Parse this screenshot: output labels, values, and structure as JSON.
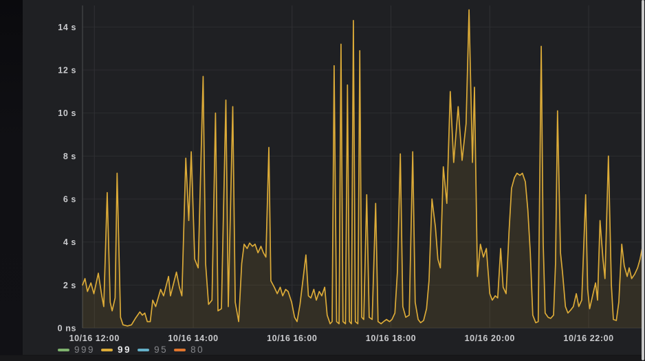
{
  "panel": {
    "background_color": "#1f2023",
    "left_strip_color": "#101014",
    "bottom_band_color": "#18181a",
    "scrollbar_color": "#c9c9c9",
    "grid_color": "#2c2d30",
    "axis_text_color": "#c9cacd"
  },
  "chart_data": {
    "type": "area",
    "title": "",
    "xlabel": "",
    "ylabel": "",
    "grid": true,
    "legend_position": "bottom-left",
    "x_axis": {
      "tick_hours": [
        12,
        14,
        16,
        18,
        20,
        22
      ],
      "tick_labels": [
        "10/16 12:00",
        "10/16 14:00",
        "10/16 16:00",
        "10/16 18:00",
        "10/16 20:00",
        "10/16 22:00"
      ],
      "range_hours": [
        11.76,
        23.14
      ]
    },
    "y_axis": {
      "tick_values": [
        0,
        2,
        4,
        6,
        8,
        10,
        12,
        14
      ],
      "tick_labels": [
        "0 ns",
        "2 s",
        "4 s",
        "6 s",
        "8 s",
        "10 s",
        "12 s",
        "14 s"
      ],
      "range": [
        0,
        15
      ]
    },
    "legend": {
      "items": [
        {
          "label": "999",
          "color": "#7eb26d",
          "emphasized": false
        },
        {
          "label": "99",
          "color": "#dcab38",
          "emphasized": true
        },
        {
          "label": "95",
          "color": "#64b0c8",
          "emphasized": false
        },
        {
          "label": "80",
          "color": "#e0752d",
          "emphasized": false
        }
      ]
    },
    "series": [
      {
        "name": "999",
        "color": "#7eb26d",
        "points": []
      },
      {
        "name": "99",
        "color": "#dcab38",
        "fill_opacity": 0.11,
        "points_format": [
          "hour_of_day_10_16",
          "seconds"
        ],
        "points": [
          [
            11.76,
            2.0
          ],
          [
            11.81,
            2.3
          ],
          [
            11.86,
            1.7
          ],
          [
            11.93,
            2.1
          ],
          [
            11.99,
            1.6
          ],
          [
            12.08,
            2.55
          ],
          [
            12.15,
            1.5
          ],
          [
            12.19,
            1.0
          ],
          [
            12.26,
            6.3
          ],
          [
            12.32,
            1.2
          ],
          [
            12.36,
            0.8
          ],
          [
            12.42,
            1.4
          ],
          [
            12.46,
            7.2
          ],
          [
            12.53,
            0.5
          ],
          [
            12.58,
            0.15
          ],
          [
            12.67,
            0.1
          ],
          [
            12.75,
            0.15
          ],
          [
            12.83,
            0.45
          ],
          [
            12.92,
            0.75
          ],
          [
            12.97,
            0.6
          ],
          [
            13.02,
            0.7
          ],
          [
            13.07,
            0.3
          ],
          [
            13.13,
            0.3
          ],
          [
            13.18,
            1.3
          ],
          [
            13.24,
            1.0
          ],
          [
            13.34,
            1.8
          ],
          [
            13.4,
            1.5
          ],
          [
            13.5,
            2.4
          ],
          [
            13.54,
            1.5
          ],
          [
            13.66,
            2.6
          ],
          [
            13.72,
            1.9
          ],
          [
            13.77,
            1.5
          ],
          [
            13.85,
            7.9
          ],
          [
            13.91,
            5.0
          ],
          [
            13.96,
            8.2
          ],
          [
            14.03,
            3.2
          ],
          [
            14.1,
            2.8
          ],
          [
            14.2,
            11.7
          ],
          [
            14.25,
            3.0
          ],
          [
            14.31,
            1.1
          ],
          [
            14.38,
            1.3
          ],
          [
            14.45,
            10.0
          ],
          [
            14.5,
            0.8
          ],
          [
            14.57,
            0.9
          ],
          [
            14.66,
            10.6
          ],
          [
            14.71,
            1.0
          ],
          [
            14.8,
            10.3
          ],
          [
            14.85,
            1.2
          ],
          [
            14.92,
            0.3
          ],
          [
            14.98,
            3.0
          ],
          [
            15.03,
            3.9
          ],
          [
            15.09,
            3.7
          ],
          [
            15.14,
            3.95
          ],
          [
            15.2,
            3.8
          ],
          [
            15.25,
            3.9
          ],
          [
            15.31,
            3.5
          ],
          [
            15.37,
            3.8
          ],
          [
            15.42,
            3.5
          ],
          [
            15.47,
            3.3
          ],
          [
            15.53,
            8.4
          ],
          [
            15.57,
            2.2
          ],
          [
            15.64,
            1.9
          ],
          [
            15.7,
            1.6
          ],
          [
            15.76,
            1.9
          ],
          [
            15.81,
            1.5
          ],
          [
            15.87,
            1.8
          ],
          [
            15.92,
            1.7
          ],
          [
            15.99,
            1.2
          ],
          [
            16.05,
            0.5
          ],
          [
            16.1,
            0.3
          ],
          [
            16.16,
            1.1
          ],
          [
            16.28,
            3.4
          ],
          [
            16.33,
            1.5
          ],
          [
            16.38,
            1.4
          ],
          [
            16.44,
            1.8
          ],
          [
            16.49,
            1.3
          ],
          [
            16.55,
            1.7
          ],
          [
            16.6,
            1.5
          ],
          [
            16.66,
            1.9
          ],
          [
            16.71,
            0.6
          ],
          [
            16.77,
            0.2
          ],
          [
            16.81,
            0.3
          ],
          [
            16.85,
            12.2
          ],
          [
            16.9,
            0.3
          ],
          [
            16.95,
            0.2
          ],
          [
            16.99,
            13.2
          ],
          [
            17.03,
            0.3
          ],
          [
            17.08,
            0.2
          ],
          [
            17.12,
            11.3
          ],
          [
            17.16,
            0.3
          ],
          [
            17.2,
            0.2
          ],
          [
            17.24,
            14.3
          ],
          [
            17.28,
            0.3
          ],
          [
            17.33,
            0.2
          ],
          [
            17.37,
            12.9
          ],
          [
            17.41,
            0.5
          ],
          [
            17.45,
            0.4
          ],
          [
            17.51,
            6.2
          ],
          [
            17.56,
            0.5
          ],
          [
            17.62,
            0.4
          ],
          [
            17.69,
            5.8
          ],
          [
            17.74,
            0.3
          ],
          [
            17.8,
            0.2
          ],
          [
            17.85,
            0.3
          ],
          [
            17.91,
            0.4
          ],
          [
            17.97,
            0.3
          ],
          [
            18.02,
            0.4
          ],
          [
            18.08,
            0.7
          ],
          [
            18.13,
            2.6
          ],
          [
            18.19,
            8.1
          ],
          [
            18.24,
            1.0
          ],
          [
            18.3,
            0.5
          ],
          [
            18.37,
            0.6
          ],
          [
            18.44,
            8.2
          ],
          [
            18.49,
            1.2
          ],
          [
            18.55,
            0.4
          ],
          [
            18.6,
            0.25
          ],
          [
            18.66,
            0.35
          ],
          [
            18.72,
            0.9
          ],
          [
            18.77,
            2.2
          ],
          [
            18.83,
            6.0
          ],
          [
            18.9,
            4.7
          ],
          [
            18.95,
            3.2
          ],
          [
            19.0,
            2.8
          ],
          [
            19.06,
            7.5
          ],
          [
            19.13,
            5.8
          ],
          [
            19.2,
            11.0
          ],
          [
            19.27,
            7.7
          ],
          [
            19.36,
            10.3
          ],
          [
            19.44,
            7.8
          ],
          [
            19.52,
            9.5
          ],
          [
            19.58,
            14.8
          ],
          [
            19.65,
            7.7
          ],
          [
            19.69,
            11.2
          ],
          [
            19.75,
            2.4
          ],
          [
            19.81,
            3.9
          ],
          [
            19.87,
            3.3
          ],
          [
            19.93,
            3.7
          ],
          [
            20.0,
            1.6
          ],
          [
            20.05,
            1.3
          ],
          [
            20.11,
            1.5
          ],
          [
            20.16,
            1.4
          ],
          [
            20.22,
            3.7
          ],
          [
            20.27,
            1.9
          ],
          [
            20.33,
            1.6
          ],
          [
            20.39,
            4.5
          ],
          [
            20.44,
            6.5
          ],
          [
            20.5,
            7.0
          ],
          [
            20.55,
            7.2
          ],
          [
            20.61,
            7.1
          ],
          [
            20.66,
            7.2
          ],
          [
            20.72,
            6.8
          ],
          [
            20.77,
            5.5
          ],
          [
            20.82,
            3.5
          ],
          [
            20.87,
            0.6
          ],
          [
            20.93,
            0.25
          ],
          [
            20.98,
            0.3
          ],
          [
            21.04,
            13.1
          ],
          [
            21.08,
            4.0
          ],
          [
            21.12,
            0.7
          ],
          [
            21.18,
            0.5
          ],
          [
            21.23,
            0.45
          ],
          [
            21.29,
            0.6
          ],
          [
            21.33,
            3.0
          ],
          [
            21.37,
            10.1
          ],
          [
            21.43,
            3.5
          ],
          [
            21.47,
            2.6
          ],
          [
            21.53,
            1.0
          ],
          [
            21.58,
            0.7
          ],
          [
            21.64,
            0.85
          ],
          [
            21.69,
            1.0
          ],
          [
            21.75,
            1.6
          ],
          [
            21.8,
            1.0
          ],
          [
            21.86,
            1.3
          ],
          [
            21.94,
            6.2
          ],
          [
            21.98,
            1.8
          ],
          [
            22.02,
            0.9
          ],
          [
            22.08,
            1.5
          ],
          [
            22.14,
            2.1
          ],
          [
            22.18,
            1.3
          ],
          [
            22.23,
            5.0
          ],
          [
            22.29,
            3.2
          ],
          [
            22.33,
            2.3
          ],
          [
            22.4,
            8.0
          ],
          [
            22.46,
            2.0
          ],
          [
            22.5,
            0.4
          ],
          [
            22.56,
            0.35
          ],
          [
            22.61,
            1.2
          ],
          [
            22.67,
            3.9
          ],
          [
            22.72,
            2.9
          ],
          [
            22.78,
            2.4
          ],
          [
            22.82,
            2.8
          ],
          [
            22.87,
            2.3
          ],
          [
            22.93,
            2.5
          ],
          [
            22.99,
            2.8
          ],
          [
            23.04,
            3.2
          ],
          [
            23.1,
            3.9
          ],
          [
            23.14,
            4.1
          ]
        ]
      },
      {
        "name": "95",
        "color": "#64b0c8",
        "points": []
      },
      {
        "name": "80",
        "color": "#e0752d",
        "points": []
      }
    ]
  }
}
